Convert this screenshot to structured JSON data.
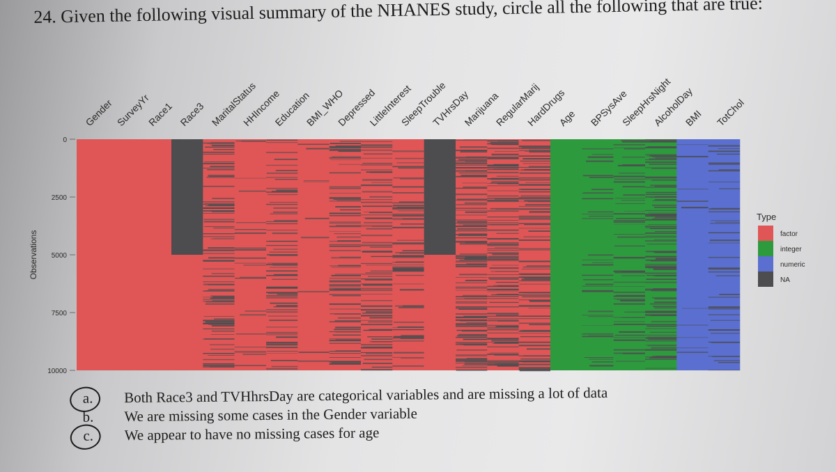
{
  "question": {
    "number": "24.",
    "text": "Given the following visual summary of the NHANES study, circle all the following that are true:"
  },
  "chart_data": {
    "type": "heatmap",
    "title": "",
    "xlabel": "",
    "ylabel": "Observations",
    "columns": [
      "Gender",
      "SurveyYr",
      "Race1",
      "Race3",
      "MaritalStatus",
      "HHIncome",
      "Education",
      "BMI_WHO",
      "Depressed",
      "LittleInterest",
      "SleepTrouble",
      "TVHrsDay",
      "Marijuana",
      "RegularMarij",
      "HardDrugs",
      "Age",
      "BPSysAve",
      "SleepHrsNight",
      "AlcoholDay",
      "BMI",
      "TotChol"
    ],
    "column_types": [
      "factor",
      "factor",
      "factor",
      "factor",
      "factor",
      "factor",
      "factor",
      "factor",
      "factor",
      "factor",
      "factor",
      "factor",
      "factor",
      "factor",
      "factor",
      "integer",
      "integer",
      "integer",
      "integer",
      "numeric",
      "numeric"
    ],
    "missing_fraction": [
      0,
      0,
      0,
      0.5,
      0.35,
      0.08,
      0.28,
      0.04,
      0.33,
      0.33,
      0.25,
      0.5,
      0.5,
      0.5,
      0.43,
      0,
      0.14,
      0.22,
      0.5,
      0.04,
      0.16
    ],
    "block_missing_end": [
      0,
      0,
      0,
      5000,
      0,
      0,
      0,
      0,
      0,
      0,
      0,
      5000,
      0,
      0,
      0,
      0,
      0,
      0,
      0,
      0,
      0
    ],
    "y_ticks": [
      0,
      2500,
      5000,
      7500,
      10000
    ],
    "ylim": [
      0,
      10000
    ],
    "legend": {
      "title": "Type",
      "placement": "right",
      "entries": [
        {
          "label": "factor",
          "color": "#e05555"
        },
        {
          "label": "integer",
          "color": "#2e9a3e"
        },
        {
          "label": "numeric",
          "color": "#5a6fd0"
        },
        {
          "label": "NA",
          "color": "#4d4d50"
        }
      ]
    }
  },
  "answers": [
    {
      "letter": "a.",
      "text": "Both Race3 and TVHhrsDay are categorical variables and are missing a lot of data",
      "circled": true
    },
    {
      "letter": "b.",
      "text": "We are missing some cases in the Gender variable",
      "circled": false
    },
    {
      "letter": "c.",
      "text": "We appear to have no missing cases for age",
      "circled": true
    }
  ]
}
